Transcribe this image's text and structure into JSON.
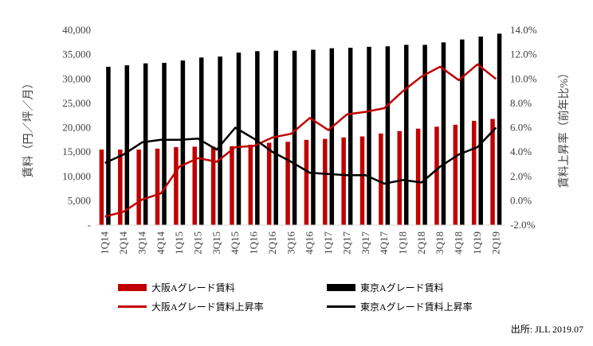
{
  "chart_data": {
    "type": "bar",
    "categories": [
      "1Q14",
      "2Q14",
      "3Q14",
      "4Q14",
      "1Q15",
      "2Q15",
      "3Q15",
      "4Q15",
      "1Q16",
      "2Q16",
      "3Q16",
      "4Q16",
      "1Q17",
      "2Q17",
      "3Q17",
      "4Q17",
      "1Q18",
      "2Q18",
      "3Q18",
      "4Q18",
      "1Q19",
      "2Q19"
    ],
    "bar_series": [
      {
        "name": "大阪Aグレード賃料",
        "color": "#c00000",
        "values": [
          15500,
          15500,
          15500,
          15700,
          16000,
          16100,
          16100,
          16200,
          16500,
          16900,
          17100,
          17500,
          17700,
          18000,
          18200,
          18800,
          19300,
          19800,
          20200,
          20600,
          21400,
          21800
        ]
      },
      {
        "name": "東京Aグレード賃料",
        "color": "#000000",
        "values": [
          32500,
          32800,
          33200,
          33300,
          33800,
          34400,
          34600,
          35400,
          35700,
          35800,
          35800,
          36000,
          36300,
          36400,
          36600,
          36700,
          37000,
          37000,
          37500,
          38100,
          38700,
          39300
        ]
      }
    ],
    "line_series": [
      {
        "name": "大阪Aグレード賃料上昇率",
        "color": "#c00000",
        "values": [
          -1.3,
          -0.9,
          0.1,
          0.6,
          2.8,
          3.5,
          3.2,
          4.4,
          4.5,
          5.2,
          5.5,
          6.8,
          5.8,
          7.1,
          7.3,
          7.6,
          9.0,
          10.2,
          11.0,
          9.9,
          11.2,
          10.0
        ]
      },
      {
        "name": "東京Aグレード賃料上昇率",
        "color": "#000000",
        "values": [
          3.1,
          3.8,
          4.8,
          5.0,
          5.0,
          5.1,
          4.2,
          6.0,
          5.1,
          4.0,
          3.2,
          2.3,
          2.2,
          2.1,
          2.1,
          1.4,
          1.7,
          1.5,
          2.8,
          3.8,
          4.4,
          6.0
        ]
      }
    ],
    "ylabel": "賃料（円／坪／月）",
    "y2label": "賃料上昇率（前年比%）",
    "ylim": [
      0,
      40000
    ],
    "y2lim": [
      -2,
      14
    ],
    "y_ticks": [
      "-",
      "5,000",
      "10,000",
      "15,000",
      "20,000",
      "25,000",
      "30,000",
      "35,000",
      "40,000"
    ],
    "y2_ticks": [
      "-2.0%",
      "0.0%",
      "2.0%",
      "4.0%",
      "6.0%",
      "8.0%",
      "10.0%",
      "12.0%",
      "14.0%"
    ],
    "grid": false,
    "legend_position": "bottom",
    "source": "出所: JLL 2019.07"
  }
}
